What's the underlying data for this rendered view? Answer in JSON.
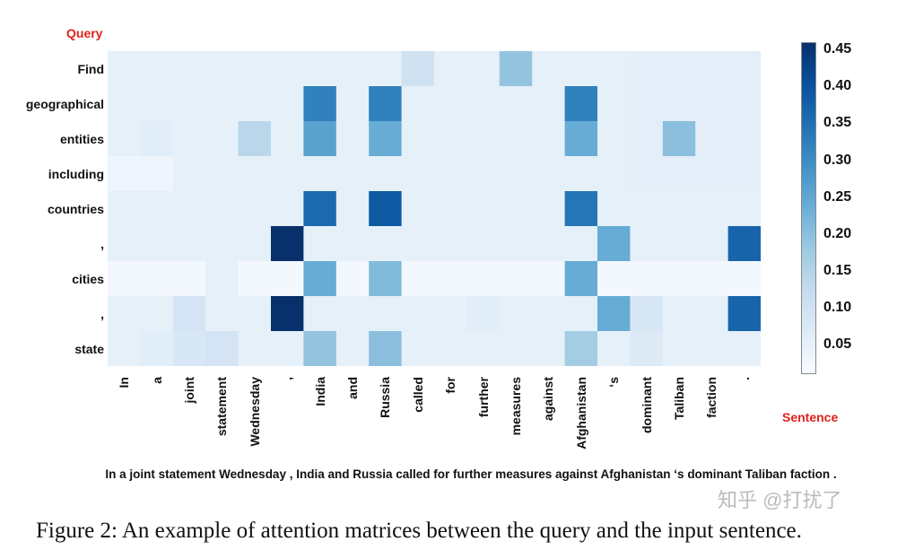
{
  "chart_data": {
    "type": "heatmap",
    "ylabel": "Query",
    "xlabel": "Sentence",
    "rows": [
      "Find",
      "geographical",
      "entities",
      "including",
      "countries",
      ",",
      "cities",
      ",",
      "state"
    ],
    "columns": [
      "In",
      "a",
      "joint",
      "statement",
      "Wednesday",
      ",",
      "India",
      "and",
      "Russia",
      "called",
      "for",
      "further",
      "measures",
      "against",
      "Afghanistan",
      "‘s",
      "dominant",
      "Taliban",
      "faction",
      "."
    ],
    "values": [
      [
        0.05,
        0.05,
        0.05,
        0.05,
        0.05,
        0.05,
        0.05,
        0.05,
        0.05,
        0.1,
        0.05,
        0.05,
        0.19,
        0.05,
        0.05,
        0.05,
        0.055,
        0.055,
        0.055,
        0.055
      ],
      [
        0.05,
        0.05,
        0.05,
        0.05,
        0.05,
        0.05,
        0.32,
        0.05,
        0.32,
        0.05,
        0.05,
        0.05,
        0.05,
        0.05,
        0.32,
        0.05,
        0.055,
        0.055,
        0.055,
        0.055
      ],
      [
        0.05,
        0.06,
        0.05,
        0.05,
        0.14,
        0.05,
        0.26,
        0.05,
        0.24,
        0.05,
        0.05,
        0.05,
        0.05,
        0.05,
        0.24,
        0.05,
        0.055,
        0.2,
        0.055,
        0.055
      ],
      [
        0.03,
        0.03,
        0.05,
        0.05,
        0.05,
        0.05,
        0.05,
        0.05,
        0.05,
        0.05,
        0.05,
        0.05,
        0.05,
        0.05,
        0.05,
        0.05,
        0.055,
        0.055,
        0.055,
        0.055
      ],
      [
        0.05,
        0.05,
        0.05,
        0.05,
        0.05,
        0.05,
        0.36,
        0.05,
        0.39,
        0.05,
        0.05,
        0.05,
        0.05,
        0.05,
        0.34,
        0.05,
        0.05,
        0.05,
        0.05,
        0.05
      ],
      [
        0.05,
        0.05,
        0.05,
        0.05,
        0.05,
        0.46,
        0.05,
        0.05,
        0.05,
        0.05,
        0.05,
        0.05,
        0.05,
        0.05,
        0.05,
        0.24,
        0.05,
        0.05,
        0.05,
        0.37
      ],
      [
        0.02,
        0.02,
        0.02,
        0.05,
        0.02,
        0.02,
        0.24,
        0.02,
        0.21,
        0.02,
        0.02,
        0.02,
        0.02,
        0.02,
        0.24,
        0.02,
        0.02,
        0.02,
        0.02,
        0.02
      ],
      [
        0.05,
        0.05,
        0.09,
        0.05,
        0.05,
        0.46,
        0.05,
        0.05,
        0.05,
        0.05,
        0.05,
        0.06,
        0.05,
        0.05,
        0.05,
        0.24,
        0.08,
        0.05,
        0.05,
        0.37
      ],
      [
        0.05,
        0.06,
        0.08,
        0.09,
        0.05,
        0.05,
        0.19,
        0.05,
        0.2,
        0.05,
        0.05,
        0.05,
        0.05,
        0.05,
        0.17,
        0.05,
        0.07,
        0.05,
        0.05,
        0.05
      ]
    ],
    "colormap": "Blues",
    "vmin": 0.01,
    "vmax": 0.46,
    "colorbar_ticks": [
      "0.45",
      "0.40",
      "0.35",
      "0.30",
      "0.25",
      "0.20",
      "0.15",
      "0.10",
      "0.05"
    ],
    "colorbar_tick_values": [
      0.45,
      0.4,
      0.35,
      0.3,
      0.25,
      0.2,
      0.15,
      0.1,
      0.05
    ],
    "label_color": "#e0201b"
  },
  "sentence": "In a joint statement Wednesday , India and Russia called for further measures against Afghanistan ‘s dominant Taliban faction .",
  "caption": "Figure 2: An example of attention matrices between the query and the input sentence.",
  "watermark": "知乎 @打扰了"
}
